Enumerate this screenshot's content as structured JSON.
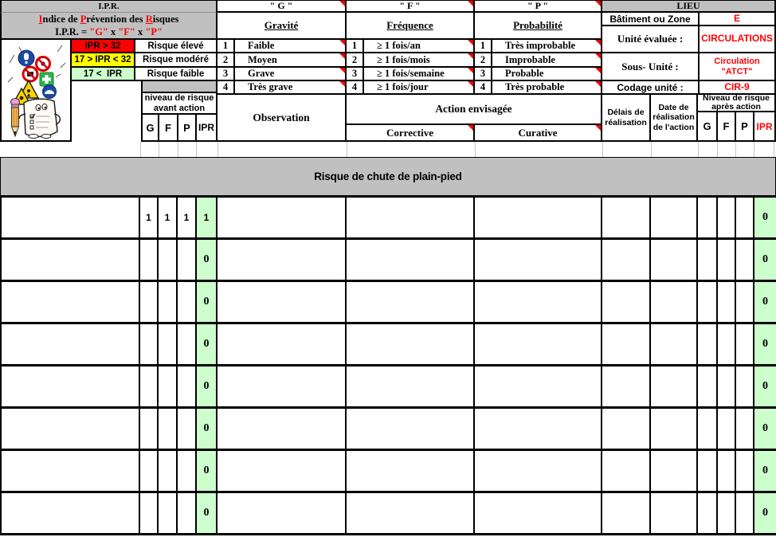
{
  "colors": {
    "header_grey": "#C0C0C0",
    "risk_high": "#FF0000",
    "risk_medium": "#FFFF00",
    "risk_low": "#CCFFCC",
    "accent_red": "#FF0000"
  },
  "ipr_block": {
    "title": "I.P.R.",
    "subtitle_segments": [
      {
        "t": "I",
        "red": true,
        "u": true
      },
      {
        "t": "ndice de ",
        "red": false,
        "u": false
      },
      {
        "t": "P",
        "red": true,
        "u": true
      },
      {
        "t": "révention des ",
        "red": false,
        "u": false
      },
      {
        "t": "R",
        "red": true,
        "u": true
      },
      {
        "t": "isques",
        "red": false,
        "u": false
      }
    ],
    "formula_segments": [
      {
        "t": "I.P.R. = ",
        "red": false,
        "u": false
      },
      {
        "t": "\"G\"",
        "red": true,
        "u": false
      },
      {
        "t": " x ",
        "red": false,
        "u": false
      },
      {
        "t": "\"F\"",
        "red": true,
        "u": false
      },
      {
        "t": " x ",
        "red": false,
        "u": false
      },
      {
        "t": "\"P\"",
        "red": true,
        "u": false
      }
    ]
  },
  "legend": {
    "rows": [
      {
        "range": "IPR > 32",
        "label": "Risque élevé",
        "color": "#FF0000"
      },
      {
        "range": "17 > IPR < 32",
        "label": "Risque modéré",
        "color": "#FFFF00"
      },
      {
        "range": "17 <  IPR",
        "label": "Risque faible",
        "color": "#CCFFCC"
      }
    ]
  },
  "scales": [
    {
      "code": "\" G \"",
      "name": "Gravité",
      "rows": [
        {
          "n": "1",
          "label": "Faible"
        },
        {
          "n": "2",
          "label": "Moyen"
        },
        {
          "n": "3",
          "label": "Grave"
        },
        {
          "n": "4",
          "label": "Très grave"
        }
      ]
    },
    {
      "code": "\" F \"",
      "name": "Fréquence",
      "rows": [
        {
          "n": "1",
          "label": "≥ 1 fois/an"
        },
        {
          "n": "2",
          "label": "≥ 1 fois/mois"
        },
        {
          "n": "3",
          "label": "≥ 1 fois/semaine"
        },
        {
          "n": "4",
          "label": "≥ 1 fois/jour"
        }
      ]
    },
    {
      "code": "\" P \"",
      "name": "Probabilité",
      "rows": [
        {
          "n": "1",
          "label": "Très improbable"
        },
        {
          "n": "2",
          "label": "Improbable"
        },
        {
          "n": "3",
          "label": "Probable"
        },
        {
          "n": "4",
          "label": "Très probable"
        }
      ]
    }
  ],
  "lieu": {
    "title": "LIEU",
    "rows": [
      {
        "label": "Bâtiment ou Zone",
        "value": "E"
      },
      {
        "label": "Unité évaluée :",
        "value": "CIRCULATIONS"
      },
      {
        "label": "Sous- Unité :",
        "value": "Circulation \"ATCT\""
      },
      {
        "label": "Codage unité :",
        "value": "CIR-9"
      }
    ]
  },
  "table_header": {
    "before_line1": "niveau de risque",
    "before_line2": "avant action",
    "g": "G",
    "f": "F",
    "p": "P",
    "ipr": "IPR",
    "observation": "Observation",
    "action": "Action envisagée",
    "corrective": "Corrective",
    "curative": "Curative",
    "delais": "Délais de réalisation",
    "date": "Date de réalisation de l'action",
    "after_line1": "Niveau de risque",
    "after_line2": "après action",
    "g2": "G",
    "f2": "F",
    "p2": "P",
    "ipr2": "IPR"
  },
  "section": {
    "title": "Risque de chute de plain-pied"
  },
  "rows": [
    {
      "g": "1",
      "f": "1",
      "p": "1",
      "ipr": "1",
      "observation": "",
      "corrective": "",
      "curative": "",
      "delais": "",
      "date": "",
      "g_after": "",
      "f_after": "",
      "p_after": "",
      "ipr_after": "0"
    },
    {
      "g": "",
      "f": "",
      "p": "",
      "ipr": "0",
      "observation": "",
      "corrective": "",
      "curative": "",
      "delais": "",
      "date": "",
      "g_after": "",
      "f_after": "",
      "p_after": "",
      "ipr_after": "0"
    },
    {
      "g": "",
      "f": "",
      "p": "",
      "ipr": "0",
      "observation": "",
      "corrective": "",
      "curative": "",
      "delais": "",
      "date": "",
      "g_after": "",
      "f_after": "",
      "p_after": "",
      "ipr_after": "0"
    },
    {
      "g": "",
      "f": "",
      "p": "",
      "ipr": "0",
      "observation": "",
      "corrective": "",
      "curative": "",
      "delais": "",
      "date": "",
      "g_after": "",
      "f_after": "",
      "p_after": "",
      "ipr_after": "0"
    },
    {
      "g": "",
      "f": "",
      "p": "",
      "ipr": "0",
      "observation": "",
      "corrective": "",
      "curative": "",
      "delais": "",
      "date": "",
      "g_after": "",
      "f_after": "",
      "p_after": "",
      "ipr_after": "0"
    },
    {
      "g": "",
      "f": "",
      "p": "",
      "ipr": "0",
      "observation": "",
      "corrective": "",
      "curative": "",
      "delais": "",
      "date": "",
      "g_after": "",
      "f_after": "",
      "p_after": "",
      "ipr_after": "0"
    },
    {
      "g": "",
      "f": "",
      "p": "",
      "ipr": "0",
      "observation": "",
      "corrective": "",
      "curative": "",
      "delais": "",
      "date": "",
      "g_after": "",
      "f_after": "",
      "p_after": "",
      "ipr_after": "0"
    },
    {
      "g": "",
      "f": "",
      "p": "",
      "ipr": "0",
      "observation": "",
      "corrective": "",
      "curative": "",
      "delais": "",
      "date": "",
      "g_after": "",
      "f_after": "",
      "p_after": "",
      "ipr_after": "0"
    }
  ]
}
